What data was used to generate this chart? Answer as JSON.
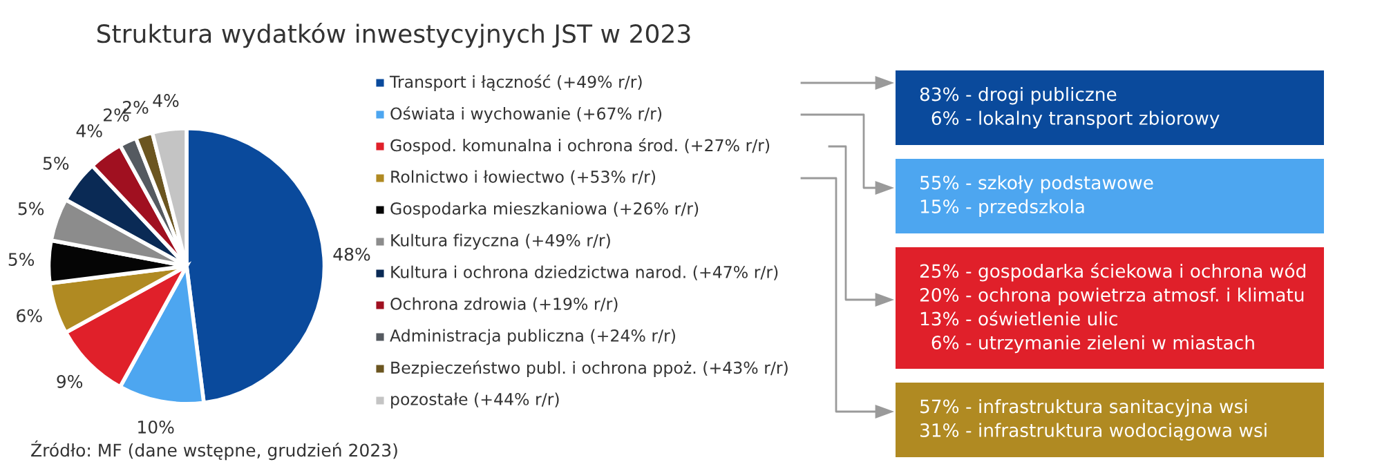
{
  "chart_data": {
    "type": "pie",
    "title": "Struktura wydatków inwestycyjnych JST w 2023",
    "categories": [
      "Transport i łączność (+49% r/r)",
      "Oświata i wychowanie (+67% r/r)",
      "Gospod. komunalna i ochrona środ. (+27% r/r)",
      "Rolnictwo i łowiectwo (+53% r/r)",
      "Gospodarka mieszkaniowa (+26% r/r)",
      "Kultura fizyczna (+49% r/r)",
      "Kultura i ochrona dziedzictwa narod. (+47% r/r)",
      "Ochrona zdrowia (+19% r/r)",
      "Administracja publiczna (+24% r/r)",
      "Bezpieczeństwo publ. i ochrona ppoż. (+43% r/r)",
      "pozostałe (+44% r/r)"
    ],
    "values": [
      48,
      10,
      9,
      6,
      5,
      5,
      5,
      4,
      2,
      2,
      4
    ],
    "value_labels": [
      "48%",
      "10%",
      "9%",
      "6%",
      "5%",
      "5%",
      "5%",
      "4%",
      "2%",
      "2%",
      "4%"
    ],
    "colors": [
      "#0a4a9c",
      "#4da6f0",
      "#e0202a",
      "#b08a22",
      "#050505",
      "#8c8c8c",
      "#0a2a55",
      "#a01020",
      "#555a60",
      "#6b5520",
      "#c4c4c4"
    ],
    "legend": "right",
    "annotations": [
      "83% - drogi publiczne\n  6% - lokalny transport zbiorowy",
      "55% - szkoły podstawowe\n15% - przedszkola",
      "25% - gospodarka ściekowa i ochrona wód\n20% - ochrona powietrza atmosf. i klimatu\n13% - oświetlenie ulic\n  6% - utrzymanie zieleni w miastach",
      "57% - infrastruktura sanitacyjna wsi\n31% - infrastruktura wodociągowa wsi",
      "Źródło: MF (dane wstępne, grudzień 2023)"
    ]
  }
}
